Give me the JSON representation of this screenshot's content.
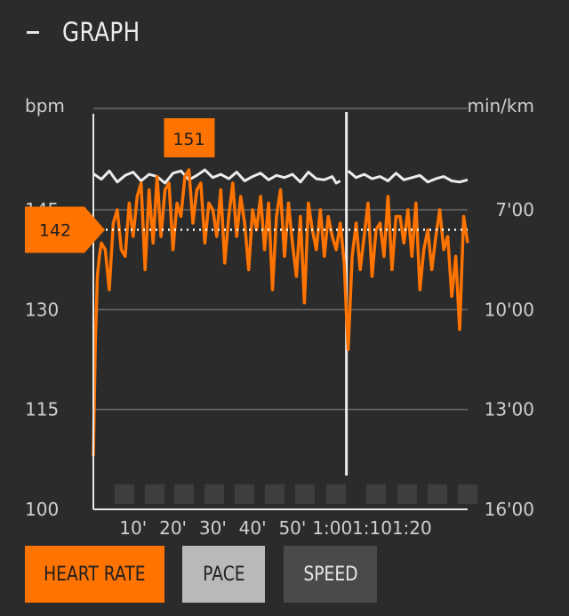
{
  "header": {
    "title": "GRAPH",
    "collapse_icon": "minus-icon"
  },
  "buttons": {
    "heart_rate": "HEART RATE",
    "pace": "PACE",
    "speed": "SPEED"
  },
  "colors": {
    "accent": "#ff7300",
    "pace_line": "#ececec",
    "background": "#2b2b2b"
  },
  "chart_data": {
    "type": "line",
    "y_left": {
      "label": "bpm",
      "ticks": [
        "100",
        "115",
        "130",
        "145"
      ],
      "range": [
        100,
        155
      ]
    },
    "y_right": {
      "label": "min/km",
      "ticks": [
        "16'00",
        "13'00",
        "10'00",
        "7'00"
      ],
      "inverted": true
    },
    "x": {
      "ticks": [
        "10'",
        "20'",
        "30'",
        "40'",
        "50'",
        "1:00",
        "1:10",
        "1:20"
      ],
      "tick_minutes": [
        10,
        20,
        30,
        40,
        50,
        60,
        70,
        80
      ],
      "range_minutes": [
        0,
        94
      ]
    },
    "grid": true,
    "average_hr": 142,
    "max_hr": 151,
    "markers": {
      "average_label": "142",
      "max_label": "151"
    },
    "pause_minute": 64,
    "series": [
      {
        "name": "HEART RATE",
        "x": [
          0,
          0.5,
          1,
          1.5,
          2,
          3,
          4,
          5,
          6,
          7,
          8,
          9,
          10,
          11,
          12,
          13,
          14,
          15,
          16,
          17,
          18,
          19,
          20,
          21,
          22,
          23,
          24,
          25,
          26,
          27,
          28,
          29,
          30,
          31,
          32,
          33,
          34,
          35,
          36,
          37,
          38,
          39,
          40,
          41,
          42,
          43,
          44,
          45,
          46,
          47,
          48,
          49,
          50,
          51,
          52,
          53,
          54,
          55,
          56,
          57,
          58,
          59,
          60,
          61,
          62,
          63,
          63.5,
          64,
          65,
          66,
          67,
          68,
          69,
          70,
          71,
          72,
          73,
          74,
          75,
          76,
          77,
          78,
          79,
          80,
          81,
          82,
          83,
          84,
          85,
          86,
          87,
          88,
          89,
          90,
          91,
          92,
          93,
          94
        ],
        "values": [
          108,
          125,
          135,
          138,
          140,
          139,
          133,
          143,
          145,
          139,
          138,
          146,
          141,
          147,
          149,
          136,
          148,
          140,
          150,
          141,
          148,
          149,
          139,
          146,
          144,
          150,
          151,
          143,
          148,
          149,
          140,
          146,
          145,
          141,
          148,
          137,
          144,
          149,
          141,
          147,
          143,
          136,
          145,
          142,
          147,
          139,
          146,
          133,
          144,
          148,
          138,
          146,
          140,
          135,
          144,
          131,
          146,
          142,
          139,
          145,
          138,
          144,
          141,
          139,
          143,
          137,
          130,
          124,
          138,
          143,
          136,
          141,
          146,
          135,
          142,
          143,
          138,
          147,
          136,
          144,
          144,
          140,
          145,
          138,
          146,
          133,
          139,
          142,
          136,
          141,
          145,
          139,
          141,
          132,
          138,
          127,
          144,
          140
        ],
        "unit": "bpm"
      },
      {
        "name": "PACE",
        "x": [
          0,
          2,
          4,
          6,
          8,
          10,
          12,
          14,
          16,
          18,
          20,
          22,
          24,
          26,
          28,
          30,
          32,
          34,
          36,
          38,
          40,
          42,
          44,
          46,
          48,
          50,
          52,
          54,
          56,
          58,
          60,
          61,
          62,
          63,
          64,
          66,
          68,
          70,
          72,
          74,
          76,
          78,
          80,
          82,
          84,
          86,
          88,
          90,
          92,
          94
        ],
        "values": [
          "5'55",
          "6'05",
          "5'50",
          "6'10",
          "5'58",
          "5'52",
          "6'08",
          "5'56",
          "6'00",
          "6'12",
          "5'54",
          "5'50",
          "6'06",
          "5'58",
          "5'48",
          "6'02",
          "5'56",
          "6'04",
          "5'52",
          "6'08",
          "6'00",
          "5'54",
          "6'06",
          "5'58",
          "6'02",
          "5'56",
          "6'10",
          "5'52",
          "6'04",
          "6'06",
          "6'00",
          "6'12",
          "6'08",
          "6'10",
          "5'50",
          "6'02",
          "5'56",
          "6'04",
          "6'00",
          "6'08",
          "5'54",
          "6'06",
          "6'02",
          "5'58",
          "6'10",
          "6'04",
          "6'00",
          "6'08",
          "6'10",
          "6'06"
        ],
        "unit": "min/km"
      }
    ]
  }
}
